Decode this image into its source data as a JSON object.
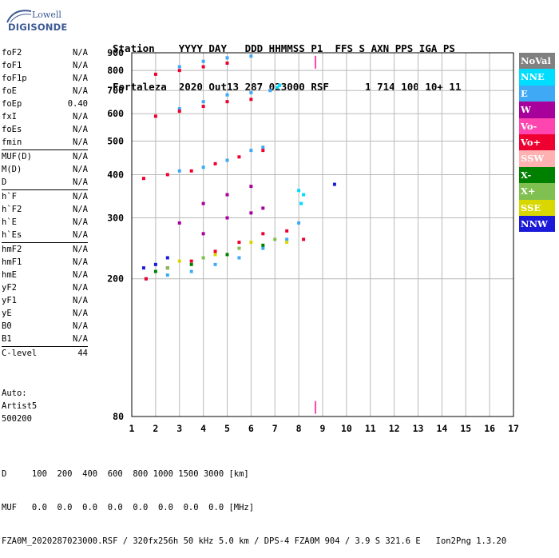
{
  "logo": {
    "line1": "Lowell",
    "line2": "DIGISONDE"
  },
  "header": {
    "line1": "Station    YYYY DAY   DDD HHMMSS P1  FFS S AXN PPS IGA PS",
    "line2": "Fortaleza  2020 Out13 287 023000 RSF      1 714 100 10+ 11"
  },
  "params": [
    [
      {
        "label": "foF2",
        "value": "N/A"
      },
      {
        "label": "foF1",
        "value": "N/A"
      },
      {
        "label": "foF1p",
        "value": "N/A"
      },
      {
        "label": "foE",
        "value": "N/A"
      },
      {
        "label": "foEp",
        "value": "0.40"
      },
      {
        "label": "fxI",
        "value": "N/A"
      },
      {
        "label": "foEs",
        "value": "N/A"
      },
      {
        "label": "fmin",
        "value": "N/A"
      }
    ],
    [
      {
        "label": "MUF(D)",
        "value": "N/A"
      },
      {
        "label": "M(D)",
        "value": "N/A"
      },
      {
        "label": "D",
        "value": "N/A"
      }
    ],
    [
      {
        "label": "h`F",
        "value": "N/A"
      },
      {
        "label": "h`F2",
        "value": "N/A"
      },
      {
        "label": "h`E",
        "value": "N/A"
      },
      {
        "label": "h`Es",
        "value": "N/A"
      }
    ],
    [
      {
        "label": "hmF2",
        "value": "N/A"
      },
      {
        "label": "hmF1",
        "value": "N/A"
      },
      {
        "label": "hmE",
        "value": "N/A"
      },
      {
        "label": "yF2",
        "value": "N/A"
      },
      {
        "label": "yF1",
        "value": "N/A"
      },
      {
        "label": "yE",
        "value": "N/A"
      },
      {
        "label": "B0",
        "value": "N/A"
      },
      {
        "label": "B1",
        "value": "N/A"
      }
    ],
    [
      {
        "label": "C-level",
        "value": "44"
      }
    ]
  ],
  "auto": [
    "Auto:",
    "Artist5",
    "500200"
  ],
  "legend": [
    {
      "label": "NoVal",
      "color": "#808080"
    },
    {
      "label": "NNE",
      "color": "#00ddff"
    },
    {
      "label": "E",
      "color": "#3fa9f5"
    },
    {
      "label": "W",
      "color": "#a8009a"
    },
    {
      "label": "Vo-",
      "color": "#ff46b0"
    },
    {
      "label": "Vo+",
      "color": "#ee0030"
    },
    {
      "label": "SSW",
      "color": "#ffb0b0"
    },
    {
      "label": "X-",
      "color": "#008000"
    },
    {
      "label": "X+",
      "color": "#80c050"
    },
    {
      "label": "SSE",
      "color": "#d8d800"
    },
    {
      "label": "NNW",
      "color": "#1a1ad8"
    }
  ],
  "chart_data": {
    "type": "scatter",
    "xlim": [
      1,
      17
    ],
    "ylim": [
      80,
      900
    ],
    "x_ticks": [
      1,
      2,
      3,
      4,
      5,
      6,
      7,
      8,
      9,
      10,
      11,
      12,
      13,
      14,
      15,
      16,
      17
    ],
    "y_ticks": [
      80,
      200,
      300,
      400,
      500,
      600,
      700,
      800,
      900
    ],
    "grid": true,
    "series": [
      {
        "name": "NNE",
        "points": [
          [
            7.1,
            715
          ],
          [
            7.2,
            725
          ],
          [
            8.0,
            360
          ],
          [
            8.2,
            350
          ],
          [
            8.1,
            330
          ]
        ]
      },
      {
        "name": "E",
        "points": [
          [
            1.6,
            200
          ],
          [
            2.5,
            205
          ],
          [
            3.5,
            210
          ],
          [
            4.5,
            220
          ],
          [
            5.5,
            230
          ],
          [
            6.5,
            245
          ],
          [
            7.5,
            260
          ],
          [
            8.0,
            290
          ],
          [
            3.0,
            410
          ],
          [
            4.0,
            420
          ],
          [
            5.0,
            440
          ],
          [
            6.0,
            470
          ],
          [
            6.5,
            480
          ],
          [
            3.0,
            620
          ],
          [
            4.0,
            650
          ],
          [
            5.0,
            680
          ],
          [
            6.0,
            690
          ],
          [
            6.8,
            700
          ],
          [
            3.0,
            820
          ],
          [
            4.0,
            850
          ],
          [
            5.0,
            870
          ],
          [
            6.0,
            880
          ]
        ]
      },
      {
        "name": "W",
        "points": [
          [
            3.0,
            290
          ],
          [
            4.0,
            330
          ],
          [
            5.0,
            350
          ],
          [
            6.0,
            370
          ],
          [
            4.0,
            270
          ],
          [
            5.0,
            300
          ],
          [
            6.0,
            310
          ],
          [
            6.5,
            320
          ]
        ]
      },
      {
        "name": "Vo-",
        "points": [
          [
            8.7,
            845
          ],
          [
            8.7,
            85
          ]
        ]
      },
      {
        "name": "Vo+",
        "points": [
          [
            1.6,
            200
          ],
          [
            2.5,
            215
          ],
          [
            3.5,
            225
          ],
          [
            4.5,
            240
          ],
          [
            5.5,
            255
          ],
          [
            6.5,
            270
          ],
          [
            7.5,
            275
          ],
          [
            8.2,
            260
          ],
          [
            1.5,
            390
          ],
          [
            2.5,
            400
          ],
          [
            3.5,
            410
          ],
          [
            4.5,
            430
          ],
          [
            5.5,
            450
          ],
          [
            6.5,
            470
          ],
          [
            2.0,
            590
          ],
          [
            3.0,
            610
          ],
          [
            4.0,
            630
          ],
          [
            5.0,
            650
          ],
          [
            6.0,
            660
          ],
          [
            2.0,
            780
          ],
          [
            3.0,
            800
          ],
          [
            4.0,
            820
          ],
          [
            5.0,
            840
          ]
        ]
      },
      {
        "name": "X-",
        "points": [
          [
            2.0,
            210
          ],
          [
            3.5,
            220
          ],
          [
            5.0,
            235
          ],
          [
            6.5,
            250
          ]
        ]
      },
      {
        "name": "X+",
        "points": [
          [
            2.5,
            215
          ],
          [
            4.0,
            230
          ],
          [
            5.5,
            245
          ],
          [
            7.0,
            260
          ]
        ]
      },
      {
        "name": "SSE",
        "points": [
          [
            3.0,
            225
          ],
          [
            4.5,
            235
          ],
          [
            6.0,
            255
          ],
          [
            7.5,
            255
          ]
        ]
      },
      {
        "name": "NNW",
        "points": [
          [
            1.5,
            215
          ],
          [
            2.0,
            220
          ],
          [
            2.5,
            230
          ],
          [
            9.5,
            375
          ]
        ]
      }
    ]
  },
  "footer": {
    "line1": "D     100  200  400  600  800 1000 1500 3000 [km]",
    "line2": "MUF   0.0  0.0  0.0  0.0  0.0  0.0  0.0  0.0 [MHz]",
    "line3": "FZA0M_2020287023000.RSF / 320fx256h 50 kHz 5.0 km / DPS-4 FZA0M 904 / 3.9 S 321.6 E   Ion2Png 1.3.20"
  }
}
